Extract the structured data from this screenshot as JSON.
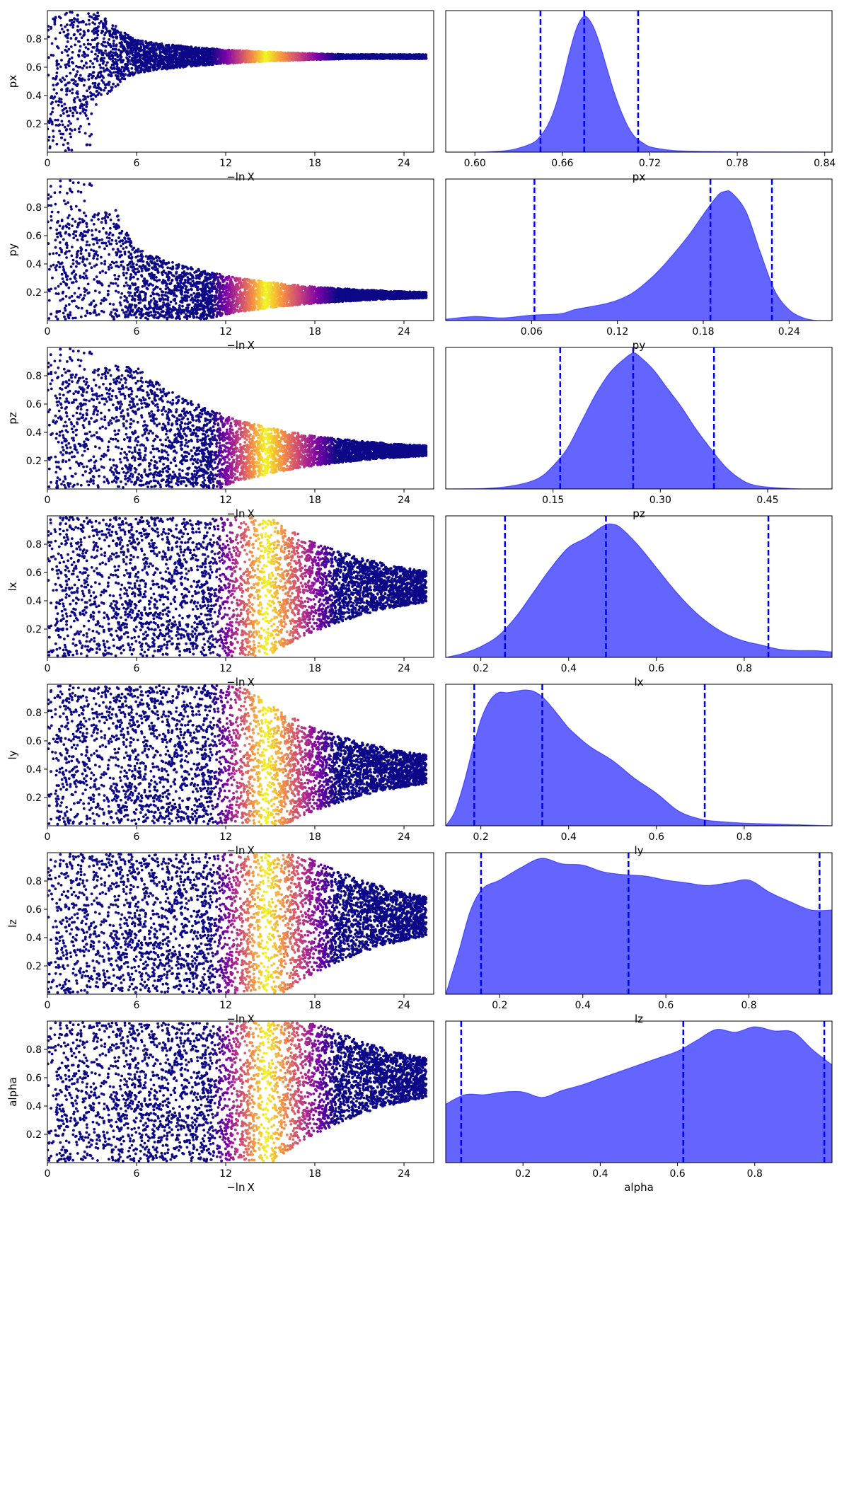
{
  "figure": {
    "x_axis_label": "−ln X",
    "colormap": [
      "#0d0887",
      "#7e03a8",
      "#cc4778",
      "#f89540",
      "#f0f921"
    ],
    "hist_fill_color": "#6464ff",
    "hist_line_color": "#0000ff",
    "quantile_line_color": "#0000ff"
  },
  "chart_data": [
    {
      "type": "scatter",
      "panel": "trace",
      "parameter": "px",
      "ylabel": "px",
      "xlabel": "−ln X",
      "xlim": [
        0,
        26
      ],
      "ylim": [
        0,
        1
      ],
      "xticks": [
        "0",
        "6",
        "12",
        "18",
        "24"
      ],
      "yticks": [
        "0.2",
        "0.4",
        "0.6",
        "0.8"
      ],
      "converge_to": 0.675,
      "band_width_at_12": 0.05
    },
    {
      "type": "area",
      "panel": "marginal",
      "parameter": "px",
      "xlabel": "px",
      "xlim": [
        0.58,
        0.845
      ],
      "xticks": [
        "0.60",
        "0.66",
        "0.72",
        "0.78",
        "0.84"
      ],
      "quantiles": [
        0.645,
        0.675,
        0.712
      ],
      "density": {
        "x": [
          0.58,
          0.6,
          0.62,
          0.63,
          0.64,
          0.645,
          0.65,
          0.655,
          0.66,
          0.665,
          0.67,
          0.675,
          0.68,
          0.685,
          0.69,
          0.695,
          0.7,
          0.705,
          0.71,
          0.715,
          0.72,
          0.73,
          0.74,
          0.76,
          0.8,
          0.845
        ],
        "y": [
          0.0,
          0.0,
          0.01,
          0.03,
          0.07,
          0.12,
          0.2,
          0.33,
          0.52,
          0.74,
          0.92,
          1.0,
          0.95,
          0.82,
          0.64,
          0.46,
          0.31,
          0.19,
          0.11,
          0.07,
          0.04,
          0.02,
          0.01,
          0.005,
          0.002,
          0.0
        ]
      }
    },
    {
      "type": "scatter",
      "panel": "trace",
      "parameter": "py",
      "ylabel": "py",
      "xlabel": "−ln X",
      "xlim": [
        0,
        26
      ],
      "ylim": [
        0,
        1
      ],
      "xticks": [
        "0",
        "6",
        "12",
        "18",
        "24"
      ],
      "yticks": [
        "0.2",
        "0.4",
        "0.6",
        "0.8"
      ],
      "converge_to": 0.18,
      "band_width_at_12": 0.14
    },
    {
      "type": "area",
      "panel": "marginal",
      "parameter": "py",
      "xlabel": "py",
      "xlim": [
        0.0,
        0.27
      ],
      "xticks": [
        "0.06",
        "0.12",
        "0.18",
        "0.24"
      ],
      "quantiles": [
        0.062,
        0.185,
        0.228
      ],
      "density": {
        "x": [
          0.0,
          0.02,
          0.04,
          0.06,
          0.08,
          0.09,
          0.1,
          0.11,
          0.12,
          0.13,
          0.14,
          0.15,
          0.16,
          0.17,
          0.18,
          0.19,
          0.195,
          0.2,
          0.21,
          0.22,
          0.23,
          0.24,
          0.25,
          0.26,
          0.27
        ],
        "y": [
          0.01,
          0.03,
          0.02,
          0.04,
          0.05,
          0.08,
          0.1,
          0.12,
          0.15,
          0.2,
          0.28,
          0.38,
          0.5,
          0.63,
          0.78,
          0.92,
          0.95,
          0.94,
          0.8,
          0.5,
          0.22,
          0.08,
          0.02,
          0.0,
          0.0
        ]
      }
    },
    {
      "type": "scatter",
      "panel": "trace",
      "parameter": "pz",
      "ylabel": "pz",
      "xlabel": "−ln X",
      "xlim": [
        0,
        26
      ],
      "ylim": [
        0,
        1
      ],
      "xticks": [
        "0",
        "6",
        "12",
        "18",
        "24"
      ],
      "yticks": [
        "0.2",
        "0.4",
        "0.6",
        "0.8"
      ],
      "converge_to": 0.27,
      "band_width_at_12": 0.25
    },
    {
      "type": "area",
      "panel": "marginal",
      "parameter": "pz",
      "xlabel": "pz",
      "xlim": [
        0.0,
        0.54
      ],
      "xticks": [
        "0.15",
        "0.30",
        "0.45"
      ],
      "quantiles": [
        0.16,
        0.262,
        0.375
      ],
      "density": {
        "x": [
          0.0,
          0.06,
          0.1,
          0.13,
          0.15,
          0.17,
          0.19,
          0.21,
          0.23,
          0.25,
          0.262,
          0.27,
          0.29,
          0.31,
          0.33,
          0.35,
          0.37,
          0.39,
          0.41,
          0.43,
          0.46,
          0.5,
          0.54
        ],
        "y": [
          0.0,
          0.005,
          0.03,
          0.08,
          0.17,
          0.3,
          0.5,
          0.7,
          0.86,
          0.96,
          1.0,
          0.98,
          0.88,
          0.74,
          0.6,
          0.44,
          0.3,
          0.17,
          0.08,
          0.03,
          0.01,
          0.0,
          0.0
        ]
      }
    },
    {
      "type": "scatter",
      "panel": "trace",
      "parameter": "lx",
      "ylabel": "lx",
      "xlabel": "−ln X",
      "xlim": [
        0,
        26
      ],
      "ylim": [
        0,
        1
      ],
      "xticks": [
        "0",
        "6",
        "12",
        "18",
        "24"
      ],
      "yticks": [
        "0.2",
        "0.4",
        "0.6",
        "0.8"
      ],
      "converge_to": 0.5,
      "band_width_at_12": 0.75
    },
    {
      "type": "area",
      "panel": "marginal",
      "parameter": "lx",
      "xlabel": "lx",
      "xlim": [
        0.12,
        1.0
      ],
      "xticks": [
        "0.2",
        "0.4",
        "0.6",
        "0.8"
      ],
      "quantiles": [
        0.255,
        0.485,
        0.855
      ],
      "density": {
        "x": [
          0.12,
          0.16,
          0.2,
          0.24,
          0.28,
          0.32,
          0.36,
          0.4,
          0.44,
          0.48,
          0.5,
          0.52,
          0.56,
          0.6,
          0.64,
          0.68,
          0.72,
          0.76,
          0.8,
          0.84,
          0.88,
          0.92,
          0.96,
          1.0
        ],
        "y": [
          0.0,
          0.03,
          0.08,
          0.16,
          0.3,
          0.48,
          0.66,
          0.81,
          0.88,
          0.97,
          0.98,
          0.95,
          0.82,
          0.66,
          0.5,
          0.36,
          0.25,
          0.17,
          0.12,
          0.09,
          0.06,
          0.05,
          0.05,
          0.04
        ]
      }
    },
    {
      "type": "scatter",
      "panel": "trace",
      "parameter": "ly",
      "ylabel": "ly",
      "xlabel": "−ln X",
      "xlim": [
        0,
        26
      ],
      "ylim": [
        0,
        1
      ],
      "xticks": [
        "0",
        "6",
        "12",
        "18",
        "24"
      ],
      "yticks": [
        "0.2",
        "0.4",
        "0.6",
        "0.8"
      ],
      "converge_to": 0.4,
      "band_width_at_12": 0.7
    },
    {
      "type": "area",
      "panel": "marginal",
      "parameter": "ly",
      "xlabel": "ly",
      "xlim": [
        0.12,
        1.0
      ],
      "xticks": [
        "0.2",
        "0.4",
        "0.6",
        "0.8"
      ],
      "quantiles": [
        0.185,
        0.34,
        0.71
      ],
      "density": {
        "x": [
          0.12,
          0.14,
          0.16,
          0.18,
          0.2,
          0.22,
          0.24,
          0.26,
          0.28,
          0.3,
          0.32,
          0.34,
          0.36,
          0.38,
          0.4,
          0.42,
          0.45,
          0.5,
          0.55,
          0.6,
          0.65,
          0.7,
          0.75,
          0.8,
          0.9,
          1.0
        ],
        "y": [
          0.0,
          0.1,
          0.3,
          0.55,
          0.78,
          0.92,
          0.98,
          0.98,
          0.99,
          1.0,
          0.99,
          0.95,
          0.88,
          0.8,
          0.72,
          0.66,
          0.58,
          0.48,
          0.35,
          0.24,
          0.11,
          0.05,
          0.03,
          0.02,
          0.01,
          0.0
        ]
      }
    },
    {
      "type": "scatter",
      "panel": "trace",
      "parameter": "lz",
      "ylabel": "lz",
      "xlabel": "−ln X",
      "xlim": [
        0,
        26
      ],
      "ylim": [
        0,
        1
      ],
      "xticks": [
        "0",
        "6",
        "12",
        "18",
        "24"
      ],
      "yticks": [
        "0.2",
        "0.4",
        "0.6",
        "0.8"
      ],
      "converge_to": 0.55,
      "band_width_at_12": 0.95
    },
    {
      "type": "area",
      "panel": "marginal",
      "parameter": "lz",
      "xlabel": "lz",
      "xlim": [
        0.07,
        1.0
      ],
      "xticks": [
        "0.2",
        "0.4",
        "0.6",
        "0.8"
      ],
      "quantiles": [
        0.155,
        0.51,
        0.97
      ],
      "density": {
        "x": [
          0.07,
          0.1,
          0.13,
          0.16,
          0.2,
          0.25,
          0.3,
          0.35,
          0.4,
          0.45,
          0.5,
          0.55,
          0.6,
          0.65,
          0.7,
          0.75,
          0.8,
          0.85,
          0.9,
          0.95,
          1.0
        ],
        "y": [
          0.0,
          0.3,
          0.62,
          0.78,
          0.84,
          0.93,
          1.0,
          0.96,
          0.95,
          0.9,
          0.88,
          0.87,
          0.84,
          0.82,
          0.8,
          0.82,
          0.84,
          0.75,
          0.68,
          0.62,
          0.62
        ]
      }
    },
    {
      "type": "scatter",
      "panel": "trace",
      "parameter": "alpha",
      "ylabel": "alpha",
      "xlabel": "−ln X",
      "xlim": [
        0,
        26
      ],
      "ylim": [
        0,
        1
      ],
      "xticks": [
        "0",
        "6",
        "12",
        "18",
        "24"
      ],
      "yticks": [
        "0.2",
        "0.4",
        "0.6",
        "0.8"
      ],
      "converge_to": 0.6,
      "band_width_at_12": 0.95
    },
    {
      "type": "area",
      "panel": "marginal",
      "parameter": "alpha",
      "xlabel": "alpha",
      "xlim": [
        0.0,
        1.0
      ],
      "xticks": [
        "0.2",
        "0.4",
        "0.6",
        "0.8"
      ],
      "quantiles": [
        0.04,
        0.615,
        0.98
      ],
      "density": {
        "x": [
          0.0,
          0.05,
          0.1,
          0.15,
          0.2,
          0.25,
          0.3,
          0.35,
          0.4,
          0.45,
          0.5,
          0.55,
          0.6,
          0.65,
          0.7,
          0.75,
          0.8,
          0.85,
          0.9,
          0.95,
          1.0
        ],
        "y": [
          0.43,
          0.5,
          0.5,
          0.52,
          0.52,
          0.48,
          0.53,
          0.57,
          0.62,
          0.67,
          0.72,
          0.77,
          0.82,
          0.9,
          0.98,
          0.96,
          1.0,
          0.97,
          0.96,
          0.83,
          0.72
        ]
      }
    }
  ]
}
